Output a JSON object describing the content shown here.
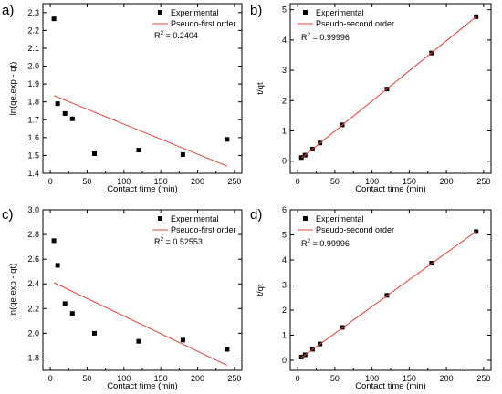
{
  "chart_data": [
    {
      "panel_label": "a)",
      "type": "scatter",
      "xlabel": "Contact time (min)",
      "ylabel": "ln(qe.exp - qt)",
      "xlim": [
        -10,
        260
      ],
      "ylim": [
        1.4,
        2.35
      ],
      "xticks": [
        "0",
        "50",
        "100",
        "150",
        "200",
        "250"
      ],
      "yticks": [
        "1.4",
        "1.5",
        "1.6",
        "1.7",
        "1.8",
        "1.9",
        "2.0",
        "2.1",
        "2.2",
        "2.3"
      ],
      "xtick_values": [
        0,
        50,
        100,
        150,
        200,
        250
      ],
      "ytick_values": [
        1.4,
        1.5,
        1.6,
        1.7,
        1.8,
        1.9,
        2.0,
        2.1,
        2.2,
        2.3
      ],
      "legend": [
        "Experimental",
        "Pseudo-first order"
      ],
      "legend_position": "top-right",
      "annotation_prefix": "R",
      "annotation_sup": "2",
      "annotation_value": " = 0.2404",
      "series": [
        {
          "name": "Experimental",
          "kind": "points",
          "x": [
            5,
            10,
            20,
            30,
            60,
            120,
            180,
            240
          ],
          "y": [
            2.265,
            1.79,
            1.735,
            1.705,
            1.51,
            1.53,
            1.505,
            1.59
          ]
        },
        {
          "name": "Pseudo-first order",
          "kind": "line",
          "x": [
            5,
            240
          ],
          "y": [
            1.835,
            1.44
          ]
        }
      ]
    },
    {
      "panel_label": "b)",
      "type": "scatter",
      "xlabel": "Contact time (min)",
      "ylabel": "t/qt",
      "xlim": [
        -10,
        260
      ],
      "ylim": [
        -0.4,
        5.2
      ],
      "xticks": [
        "0",
        "50",
        "100",
        "150",
        "200",
        "250"
      ],
      "yticks": [
        "0",
        "1",
        "2",
        "3",
        "4",
        "5"
      ],
      "xtick_values": [
        0,
        50,
        100,
        150,
        200,
        250
      ],
      "ytick_values": [
        0,
        1,
        2,
        3,
        4,
        5
      ],
      "legend": [
        "Experimental",
        "Pseudo-second order"
      ],
      "legend_position": "top-left",
      "annotation_prefix": "R",
      "annotation_sup": "2",
      "annotation_value": " = 0.99996",
      "series": [
        {
          "name": "Experimental",
          "kind": "points",
          "x": [
            5,
            10,
            20,
            30,
            60,
            120,
            180,
            240
          ],
          "y": [
            0.12,
            0.2,
            0.4,
            0.6,
            1.2,
            2.38,
            3.57,
            4.77
          ]
        },
        {
          "name": "Pseudo-second order",
          "kind": "line",
          "x": [
            5,
            240
          ],
          "y": [
            0.1,
            4.77
          ]
        }
      ]
    },
    {
      "panel_label": "c)",
      "type": "scatter",
      "xlabel": "Contact time (min)",
      "ylabel": "ln(qe.exp - qt)",
      "xlim": [
        -10,
        260
      ],
      "ylim": [
        1.7,
        3.0
      ],
      "xticks": [
        "0",
        "50",
        "100",
        "150",
        "200",
        "250"
      ],
      "yticks": [
        "1.8",
        "2.0",
        "2.2",
        "2.4",
        "2.6",
        "2.8",
        "3.0"
      ],
      "xtick_values": [
        0,
        50,
        100,
        150,
        200,
        250
      ],
      "ytick_values": [
        1.8,
        2.0,
        2.2,
        2.4,
        2.6,
        2.8,
        3.0
      ],
      "legend": [
        "Experimental",
        "Pseudo-first order"
      ],
      "legend_position": "top-right",
      "annotation_prefix": "R",
      "annotation_sup": "2",
      "annotation_value": " = 0.52553",
      "series": [
        {
          "name": "Experimental",
          "kind": "points",
          "x": [
            5,
            10,
            20,
            30,
            60,
            120,
            180,
            240
          ],
          "y": [
            2.75,
            2.55,
            2.24,
            2.16,
            2.0,
            1.935,
            1.945,
            1.87
          ]
        },
        {
          "name": "Pseudo-first order",
          "kind": "line",
          "x": [
            5,
            240
          ],
          "y": [
            2.41,
            1.74
          ]
        }
      ]
    },
    {
      "panel_label": "d)",
      "type": "scatter",
      "xlabel": "Contact time (min)",
      "ylabel": "t/qt",
      "xlim": [
        -10,
        260
      ],
      "ylim": [
        -0.4,
        6.0
      ],
      "xticks": [
        "0",
        "50",
        "100",
        "150",
        "200",
        "250"
      ],
      "yticks": [
        "0",
        "1",
        "2",
        "3",
        "4",
        "5",
        "6"
      ],
      "xtick_values": [
        0,
        50,
        100,
        150,
        200,
        250
      ],
      "ytick_values": [
        0,
        1,
        2,
        3,
        4,
        5,
        6
      ],
      "legend": [
        "Experimental",
        "Pseudo-second order"
      ],
      "legend_position": "top-left",
      "annotation_prefix": "R",
      "annotation_sup": "2",
      "annotation_value": " = 0.99996",
      "series": [
        {
          "name": "Experimental",
          "kind": "points",
          "x": [
            5,
            10,
            20,
            30,
            60,
            120,
            180,
            240
          ],
          "y": [
            0.13,
            0.22,
            0.44,
            0.65,
            1.31,
            2.59,
            3.87,
            5.13
          ]
        },
        {
          "name": "Pseudo-second order",
          "kind": "line",
          "x": [
            5,
            240
          ],
          "y": [
            0.11,
            5.14
          ]
        }
      ]
    }
  ],
  "colors": {
    "fit_line": "#e8403a",
    "marker": "#000000",
    "axis": "#000000"
  }
}
